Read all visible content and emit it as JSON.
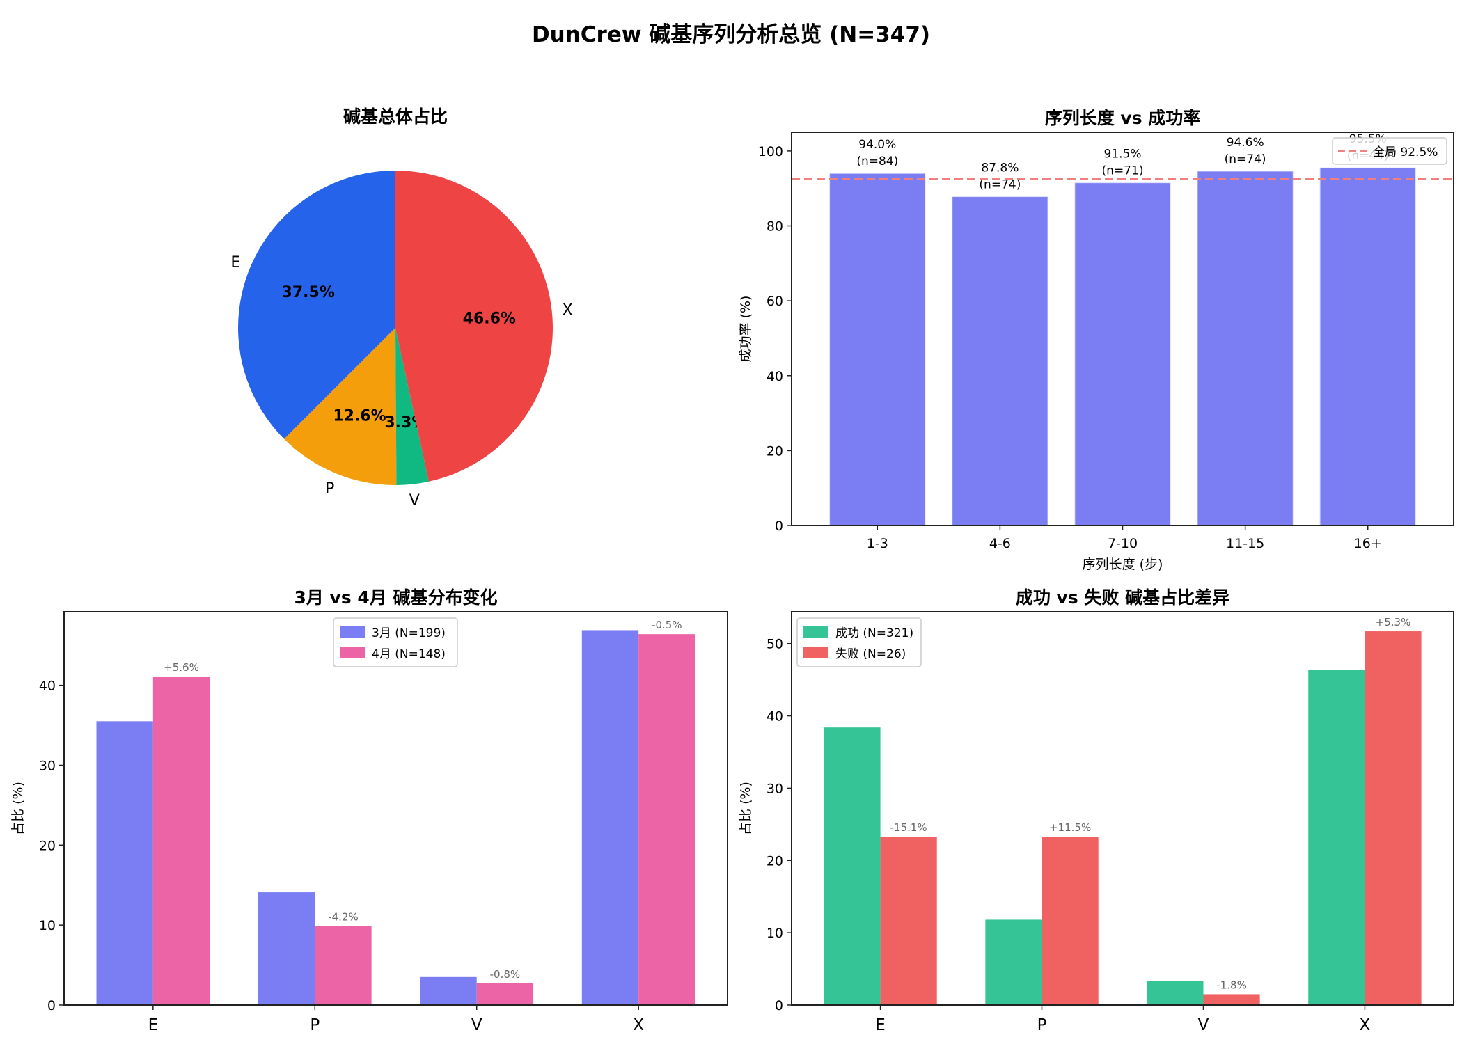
{
  "figure": {
    "suptitle": "DunCrew 碱基序列分析总览 (N=347)"
  },
  "chart_data": [
    {
      "id": "pie",
      "type": "pie",
      "title": "碱基总体占比",
      "labels": [
        "E",
        "P",
        "V",
        "X"
      ],
      "values": [
        37.5,
        12.6,
        3.3,
        46.6
      ],
      "autopct": [
        "37.5%",
        "12.6%",
        "3.3%",
        "46.6%"
      ],
      "colors": [
        "#2563eb",
        "#f59e0b",
        "#10b981",
        "#ef4444"
      ],
      "startangle": 90,
      "direction": "counterclockwise"
    },
    {
      "id": "length_success",
      "type": "bar",
      "title": "序列长度 vs 成功率",
      "xlabel": "序列长度 (步)",
      "ylabel": "成功率 (%)",
      "categories": [
        "1-3",
        "4-6",
        "7-10",
        "11-15",
        "16+"
      ],
      "values": [
        94.0,
        87.8,
        91.5,
        94.6,
        95.5
      ],
      "counts": [
        84,
        74,
        71,
        74,
        44
      ],
      "bar_labels": [
        "94.0%\n(n=84)",
        "87.8%\n(n=74)",
        "91.5%\n(n=71)",
        "94.6%\n(n=74)",
        "95.5%\n(n=44)"
      ],
      "color": "#7b7ef2",
      "ylim": [
        0,
        105
      ],
      "yticks": [
        0,
        20,
        40,
        60,
        80,
        100
      ],
      "reference_line": {
        "value": 92.5,
        "label": "全局 92.5%",
        "color": "#f08080",
        "style": "dashed"
      },
      "legend_position": "upper right"
    },
    {
      "id": "month_compare",
      "type": "bar",
      "title": "3月 vs 4月 碱基分布变化",
      "xlabel": "",
      "ylabel": "占比 (%)",
      "categories": [
        "E",
        "P",
        "V",
        "X"
      ],
      "series": [
        {
          "name": "3月 (N=199)",
          "values": [
            35.5,
            14.1,
            3.5,
            46.9
          ],
          "color": "#7b7ef2"
        },
        {
          "name": "4月 (N=148)",
          "values": [
            41.1,
            9.9,
            2.7,
            46.4
          ],
          "color": "#ec63a6"
        }
      ],
      "diff_labels": [
        "+5.6%",
        "-4.2%",
        "-0.8%",
        "-0.5%"
      ],
      "ylim": [
        0,
        49.2
      ],
      "yticks": [
        0,
        10,
        20,
        30,
        40
      ],
      "legend_position": "upper center"
    },
    {
      "id": "success_fail",
      "type": "bar",
      "title": "成功 vs 失败 碱基占比差异",
      "xlabel": "",
      "ylabel": "占比 (%)",
      "categories": [
        "E",
        "P",
        "V",
        "X"
      ],
      "series": [
        {
          "name": "成功 (N=321)",
          "values": [
            38.4,
            11.8,
            3.3,
            46.4
          ],
          "color": "#34c495"
        },
        {
          "name": "失败 (N=26)",
          "values": [
            23.3,
            23.3,
            1.5,
            51.7
          ],
          "color": "#f06262"
        }
      ],
      "diff_labels": [
        "-15.1%",
        "+11.5%",
        "-1.8%",
        "+5.3%"
      ],
      "ylim": [
        0,
        54.4
      ],
      "yticks": [
        0,
        10,
        20,
        30,
        40,
        50
      ],
      "legend_position": "upper left"
    }
  ]
}
